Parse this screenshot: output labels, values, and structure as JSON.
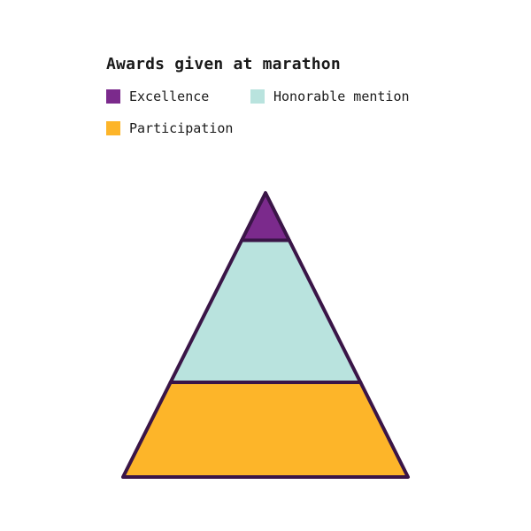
{
  "chart_data": {
    "type": "pyramid",
    "title": "Awards given at marathon",
    "legend_placement": "top-left",
    "categories": [
      "Excellence",
      "Honorable mention",
      "Participation"
    ],
    "series": [
      {
        "values": [
          1,
          3,
          2
        ],
        "colors": [
          "#7b2a8c",
          "#b9e3de",
          "#fdb529"
        ]
      }
    ],
    "outline_color": "#3a1547",
    "grid": false
  }
}
